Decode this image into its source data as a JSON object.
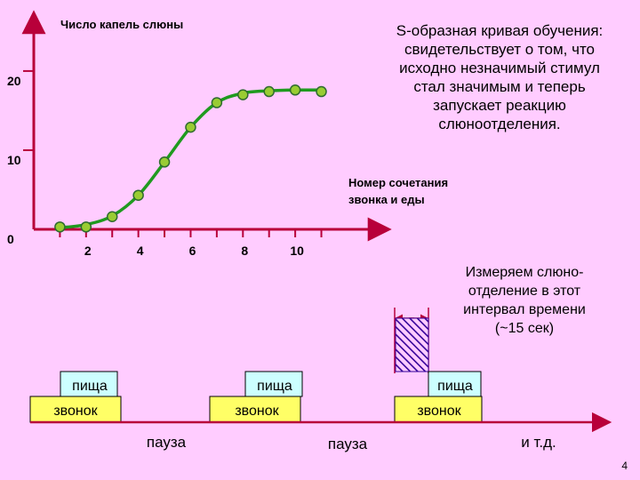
{
  "chart_data": {
    "type": "scatter",
    "y_axis_title": "Число капель слюны",
    "x_axis_title_line1": "Номер сочетания",
    "x_axis_title_line2": "звонка и еды",
    "y_tick_labels": [
      "0",
      "10",
      "20"
    ],
    "y_ticks": [
      0,
      10,
      20
    ],
    "x_tick_labels": [
      "2",
      "4",
      "6",
      "8",
      "10"
    ],
    "x_ticks": [
      2,
      4,
      6,
      8,
      10
    ],
    "xlim": [
      0,
      13.6
    ],
    "ylim": [
      0,
      27.4
    ],
    "x": [
      1,
      2,
      3,
      4,
      5,
      6,
      7,
      8,
      9,
      10,
      11
    ],
    "values": [
      0.3,
      0.3,
      1.6,
      4.3,
      8.5,
      12.9,
      16.0,
      17.0,
      17.4,
      17.6,
      17.4
    ],
    "curve_x": [
      1,
      2,
      3,
      4,
      5,
      6,
      7,
      8,
      9,
      10,
      11
    ],
    "curve_y": [
      0.2,
      0.6,
      1.7,
      4.3,
      8.5,
      12.9,
      16.0,
      17.2,
      17.5,
      17.6,
      17.6
    ],
    "colors": {
      "axis": "#B8003A",
      "curve": "#1F9A1F",
      "point_fill": "#99CC33",
      "point_stroke": "#2E6B2E"
    }
  },
  "annotation": {
    "lines": [
      "S-образная кривая обучения:",
      "свидетельствует о том, что",
      "исходно незначимый стимул",
      "стал значимым и теперь",
      "запускает реакцию",
      "слюноотделения."
    ]
  },
  "timeline": {
    "measure_note": [
      "Измеряем слюно-",
      "отделение в этот",
      "интервал времени",
      "(~15 сек)"
    ],
    "food_label": "пища",
    "bell_label": "звонок",
    "pause_label": "пауза",
    "etc_label": "и т.д.",
    "colors": {
      "food_fill": "#CCFFFF",
      "bell_fill": "#FFFF66",
      "hatch": "#330099",
      "axis": "#B8003A"
    }
  },
  "page_number": "4"
}
